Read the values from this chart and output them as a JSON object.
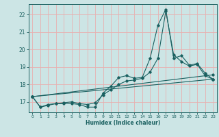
{
  "title": "",
  "xlabel": "Humidex (Indice chaleur)",
  "xlim": [
    -0.5,
    23.5
  ],
  "ylim": [
    16.4,
    22.6
  ],
  "yticks": [
    17,
    18,
    19,
    20,
    21,
    22
  ],
  "xticks": [
    0,
    1,
    2,
    3,
    4,
    5,
    6,
    7,
    8,
    9,
    10,
    11,
    12,
    13,
    14,
    15,
    16,
    17,
    18,
    19,
    20,
    21,
    22,
    23
  ],
  "background_color": "#cce5e5",
  "grid_color": "#e8b0b0",
  "line_color": "#1a6060",
  "series": [
    {
      "x": [
        0,
        1,
        2,
        3,
        4,
        5,
        6,
        7,
        8,
        9,
        10,
        11,
        12,
        13,
        14,
        15,
        16,
        17,
        18,
        19,
        20,
        21,
        22,
        23
      ],
      "y": [
        17.3,
        16.7,
        16.8,
        16.9,
        16.9,
        16.9,
        16.85,
        16.7,
        16.7,
        17.5,
        17.9,
        18.4,
        18.5,
        18.35,
        18.4,
        19.5,
        21.4,
        22.3,
        19.5,
        19.65,
        19.1,
        19.2,
        18.65,
        18.3
      ]
    },
    {
      "x": [
        0,
        1,
        2,
        3,
        4,
        5,
        6,
        7,
        8,
        9,
        10,
        11,
        12,
        13,
        14,
        15,
        16,
        17,
        18,
        19,
        20,
        21,
        22,
        23
      ],
      "y": [
        17.3,
        16.7,
        16.85,
        16.9,
        16.95,
        17.0,
        16.9,
        16.85,
        16.95,
        17.4,
        17.7,
        18.0,
        18.2,
        18.25,
        18.35,
        18.7,
        19.5,
        22.2,
        19.7,
        19.3,
        19.05,
        19.15,
        18.5,
        18.3
      ]
    },
    {
      "x": [
        0,
        23
      ],
      "y": [
        17.3,
        18.3
      ]
    },
    {
      "x": [
        0,
        23
      ],
      "y": [
        17.3,
        18.55
      ]
    }
  ]
}
